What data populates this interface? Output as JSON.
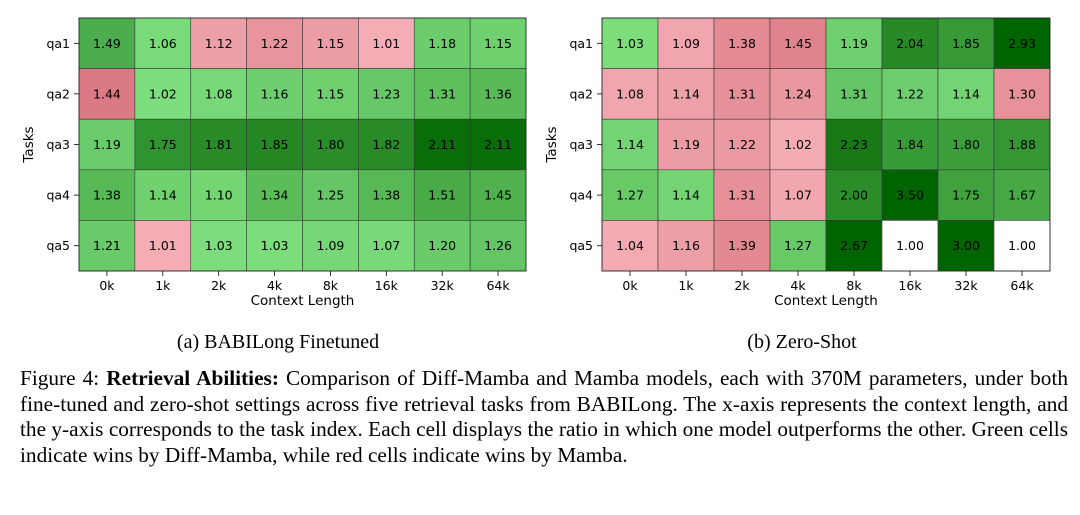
{
  "chart_data": [
    {
      "type": "heatmap",
      "panel_label": "(a) BABILong Finetuned",
      "xlabel": "Context Length",
      "ylabel": "Tasks",
      "x_categories": [
        "0k",
        "1k",
        "2k",
        "4k",
        "8k",
        "16k",
        "32k",
        "64k"
      ],
      "y_categories": [
        "qa1",
        "qa2",
        "qa3",
        "qa4",
        "qa5"
      ],
      "values": [
        [
          1.49,
          1.06,
          1.12,
          1.22,
          1.15,
          1.01,
          1.18,
          1.15
        ],
        [
          1.44,
          1.02,
          1.08,
          1.16,
          1.15,
          1.23,
          1.31,
          1.36
        ],
        [
          1.19,
          1.75,
          1.81,
          1.85,
          1.8,
          1.82,
          2.11,
          2.11
        ],
        [
          1.38,
          1.14,
          1.1,
          1.34,
          1.25,
          1.38,
          1.51,
          1.45
        ],
        [
          1.21,
          1.01,
          1.03,
          1.03,
          1.09,
          1.07,
          1.2,
          1.26
        ]
      ],
      "winner": [
        [
          "g",
          "g",
          "r",
          "r",
          "r",
          "r",
          "g",
          "g"
        ],
        [
          "r",
          "g",
          "g",
          "g",
          "g",
          "g",
          "g",
          "g"
        ],
        [
          "g",
          "g",
          "g",
          "g",
          "g",
          "g",
          "g",
          "g"
        ],
        [
          "g",
          "g",
          "g",
          "g",
          "g",
          "g",
          "g",
          "g"
        ],
        [
          "g",
          "r",
          "g",
          "g",
          "g",
          "g",
          "g",
          "g"
        ]
      ],
      "color_max": 2.2
    },
    {
      "type": "heatmap",
      "panel_label": "(b) Zero-Shot",
      "xlabel": "Context Length",
      "ylabel": "Tasks",
      "x_categories": [
        "0k",
        "1k",
        "2k",
        "4k",
        "8k",
        "16k",
        "32k",
        "64k"
      ],
      "y_categories": [
        "qa1",
        "qa2",
        "qa3",
        "qa4",
        "qa5"
      ],
      "values": [
        [
          1.03,
          1.09,
          1.38,
          1.45,
          1.19,
          2.04,
          1.85,
          2.93
        ],
        [
          1.08,
          1.14,
          1.31,
          1.24,
          1.31,
          1.22,
          1.14,
          1.3
        ],
        [
          1.14,
          1.19,
          1.22,
          1.02,
          2.23,
          1.84,
          1.8,
          1.88
        ],
        [
          1.27,
          1.14,
          1.31,
          1.07,
          2.0,
          3.5,
          1.75,
          1.67
        ],
        [
          1.04,
          1.16,
          1.39,
          1.27,
          2.67,
          1.0,
          3.0,
          1.0
        ]
      ],
      "winner": [
        [
          "g",
          "r",
          "r",
          "r",
          "g",
          "g",
          "g",
          "g"
        ],
        [
          "r",
          "r",
          "r",
          "r",
          "g",
          "g",
          "g",
          "r"
        ],
        [
          "g",
          "r",
          "r",
          "r",
          "g",
          "g",
          "g",
          "g"
        ],
        [
          "g",
          "g",
          "r",
          "r",
          "g",
          "g",
          "g",
          "g"
        ],
        [
          "r",
          "r",
          "r",
          "g",
          "g",
          "n",
          "g",
          "n"
        ]
      ],
      "color_max": 2.5
    }
  ],
  "colors": {
    "green_light": "#7ee07e",
    "green_dark": "#006400",
    "red_light": "#f5aeb6",
    "red_dark": "#c95460",
    "neutral": "#ffffff",
    "text": "#000000"
  },
  "caption": {
    "prefix": "Figure 4:",
    "bold": "Retrieval Abilities:",
    "text": "Comparison of Diff-Mamba and Mamba models, each with 370M parameters, under both fine-tuned and zero-shot settings across five retrieval tasks from BABILong. The x-axis represents the context length, and the y-axis corresponds to the task index. Each cell displays the ratio in which one model outperforms the other. Green cells indicate wins by Diff-Mamba, while red cells indicate wins by Mamba."
  }
}
